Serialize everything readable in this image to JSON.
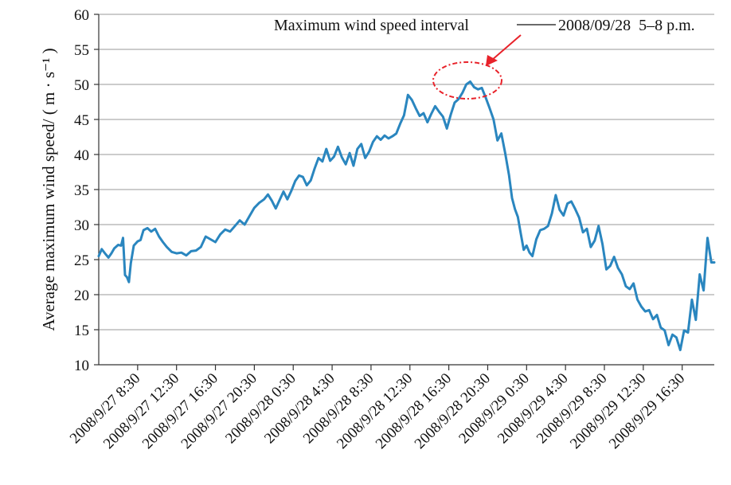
{
  "chart_data": {
    "type": "line",
    "title": "",
    "xlabel": "",
    "ylabel": "Average maximum wind speed/ ( m · s⁻¹ )",
    "ylim": [
      10,
      60
    ],
    "yticks": [
      10,
      15,
      20,
      25,
      30,
      35,
      40,
      45,
      50,
      55,
      60
    ],
    "grid": true,
    "line_color": "#2a86bf",
    "highlight_color": "#e8222a",
    "x_tick_labels": [
      "2008/9/27 8:30",
      "2008/9/27 12:30",
      "2008/9/27 16:30",
      "2008/9/27 20:30",
      "2008/9/28 0:30",
      "2008/9/28 4:30",
      "2008/9/28 8:30",
      "2008/9/28 12:30",
      "2008/9/28 16:30",
      "2008/9/28 20:30",
      "2008/9/29 0:30",
      "2008/9/29 4:30",
      "2008/9/29 8:30",
      "2008/9/29 12:30",
      "2008/9/29 16:30"
    ],
    "x_tick_hours": [
      4,
      8,
      12,
      16,
      20,
      24,
      28,
      32,
      36,
      40,
      44,
      48,
      52,
      56,
      60
    ],
    "annotation": {
      "label": "Maximum wind speed interval",
      "detail": "2008/09/28  5–8 p.m."
    },
    "series": [
      {
        "points": [
          [
            0.0,
            25.5
          ],
          [
            0.3,
            26.5
          ],
          [
            0.7,
            25.8
          ],
          [
            1.0,
            25.3
          ],
          [
            1.3,
            25.9
          ],
          [
            1.6,
            26.6
          ],
          [
            2.0,
            27.1
          ],
          [
            2.3,
            27.0
          ],
          [
            2.5,
            28.1
          ],
          [
            2.7,
            22.8
          ],
          [
            2.9,
            22.5
          ],
          [
            3.1,
            21.8
          ],
          [
            3.3,
            24.5
          ],
          [
            3.6,
            27.0
          ],
          [
            4.0,
            27.6
          ],
          [
            4.3,
            27.8
          ],
          [
            4.6,
            29.2
          ],
          [
            5.0,
            29.5
          ],
          [
            5.4,
            29.0
          ],
          [
            5.8,
            29.4
          ],
          [
            6.2,
            28.3
          ],
          [
            6.6,
            27.5
          ],
          [
            7.0,
            26.8
          ],
          [
            7.5,
            26.1
          ],
          [
            8.0,
            25.9
          ],
          [
            8.5,
            26.0
          ],
          [
            9.0,
            25.6
          ],
          [
            9.5,
            26.2
          ],
          [
            10.0,
            26.3
          ],
          [
            10.5,
            26.8
          ],
          [
            11.0,
            28.3
          ],
          [
            11.5,
            27.9
          ],
          [
            12.0,
            27.5
          ],
          [
            12.5,
            28.6
          ],
          [
            13.0,
            29.3
          ],
          [
            13.5,
            29.0
          ],
          [
            14.0,
            29.8
          ],
          [
            14.5,
            30.6
          ],
          [
            15.0,
            30.0
          ],
          [
            15.5,
            31.2
          ],
          [
            16.0,
            32.4
          ],
          [
            16.5,
            33.1
          ],
          [
            17.0,
            33.6
          ],
          [
            17.4,
            34.3
          ],
          [
            17.8,
            33.4
          ],
          [
            18.2,
            32.3
          ],
          [
            18.6,
            33.5
          ],
          [
            19.0,
            34.7
          ],
          [
            19.4,
            33.6
          ],
          [
            19.8,
            34.8
          ],
          [
            20.2,
            36.2
          ],
          [
            20.6,
            37.0
          ],
          [
            21.0,
            36.8
          ],
          [
            21.4,
            35.6
          ],
          [
            21.8,
            36.3
          ],
          [
            22.2,
            38.0
          ],
          [
            22.6,
            39.5
          ],
          [
            23.0,
            39.0
          ],
          [
            23.4,
            40.8
          ],
          [
            23.8,
            39.1
          ],
          [
            24.2,
            39.7
          ],
          [
            24.6,
            41.1
          ],
          [
            25.0,
            39.6
          ],
          [
            25.4,
            38.6
          ],
          [
            25.8,
            40.2
          ],
          [
            26.2,
            38.4
          ],
          [
            26.6,
            40.8
          ],
          [
            27.0,
            41.5
          ],
          [
            27.4,
            39.5
          ],
          [
            27.8,
            40.4
          ],
          [
            28.2,
            41.8
          ],
          [
            28.6,
            42.6
          ],
          [
            29.0,
            42.1
          ],
          [
            29.4,
            42.7
          ],
          [
            29.8,
            42.3
          ],
          [
            30.2,
            42.6
          ],
          [
            30.6,
            43.0
          ],
          [
            31.0,
            44.4
          ],
          [
            31.4,
            45.6
          ],
          [
            31.8,
            48.5
          ],
          [
            32.2,
            47.8
          ],
          [
            32.6,
            46.6
          ],
          [
            33.0,
            45.5
          ],
          [
            33.4,
            45.9
          ],
          [
            33.8,
            44.6
          ],
          [
            34.2,
            45.8
          ],
          [
            34.6,
            46.9
          ],
          [
            35.0,
            46.1
          ],
          [
            35.4,
            45.4
          ],
          [
            35.8,
            43.7
          ],
          [
            36.2,
            45.7
          ],
          [
            36.6,
            47.4
          ],
          [
            37.0,
            47.9
          ],
          [
            37.4,
            48.8
          ],
          [
            37.8,
            50.0
          ],
          [
            38.2,
            50.4
          ],
          [
            38.6,
            49.6
          ],
          [
            39.0,
            49.3
          ],
          [
            39.4,
            49.5
          ],
          [
            39.8,
            48.1
          ],
          [
            40.2,
            46.6
          ],
          [
            40.6,
            45.0
          ],
          [
            41.0,
            42.0
          ],
          [
            41.4,
            43.0
          ],
          [
            41.8,
            40.2
          ],
          [
            42.2,
            37.0
          ],
          [
            42.5,
            33.8
          ],
          [
            42.8,
            32.2
          ],
          [
            43.1,
            31.1
          ],
          [
            43.4,
            28.7
          ],
          [
            43.7,
            26.4
          ],
          [
            44.0,
            27.0
          ],
          [
            44.3,
            26.0
          ],
          [
            44.6,
            25.5
          ],
          [
            45.0,
            27.9
          ],
          [
            45.4,
            29.2
          ],
          [
            45.8,
            29.4
          ],
          [
            46.2,
            29.8
          ],
          [
            46.6,
            31.6
          ],
          [
            47.0,
            34.2
          ],
          [
            47.4,
            32.1
          ],
          [
            47.8,
            31.3
          ],
          [
            48.2,
            33.0
          ],
          [
            48.6,
            33.3
          ],
          [
            49.0,
            32.2
          ],
          [
            49.4,
            31.0
          ],
          [
            49.8,
            28.9
          ],
          [
            50.2,
            29.4
          ],
          [
            50.6,
            26.8
          ],
          [
            51.0,
            27.7
          ],
          [
            51.4,
            29.8
          ],
          [
            51.8,
            27.2
          ],
          [
            52.2,
            23.6
          ],
          [
            52.6,
            24.1
          ],
          [
            53.0,
            25.4
          ],
          [
            53.4,
            23.8
          ],
          [
            53.8,
            22.9
          ],
          [
            54.2,
            21.2
          ],
          [
            54.6,
            20.8
          ],
          [
            55.0,
            21.6
          ],
          [
            55.4,
            19.3
          ],
          [
            55.8,
            18.3
          ],
          [
            56.2,
            17.6
          ],
          [
            56.6,
            17.8
          ],
          [
            57.0,
            16.5
          ],
          [
            57.4,
            17.1
          ],
          [
            57.8,
            15.3
          ],
          [
            58.2,
            14.9
          ],
          [
            58.6,
            12.8
          ],
          [
            59.0,
            14.3
          ],
          [
            59.4,
            13.9
          ],
          [
            59.8,
            12.1
          ],
          [
            60.2,
            14.9
          ],
          [
            60.6,
            14.6
          ],
          [
            61.0,
            19.3
          ],
          [
            61.4,
            16.4
          ],
          [
            61.8,
            22.9
          ],
          [
            62.2,
            20.6
          ],
          [
            62.6,
            28.1
          ],
          [
            63.0,
            24.6
          ],
          [
            63.3,
            24.6
          ]
        ]
      }
    ]
  }
}
